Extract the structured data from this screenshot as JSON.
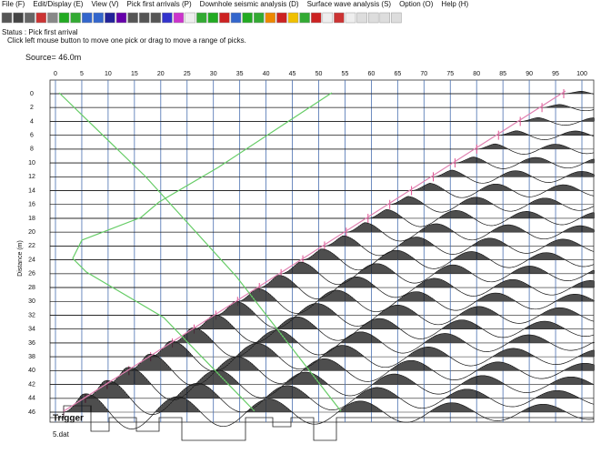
{
  "menu": [
    "File (F)",
    "Edit/Display (E)",
    "View (V)",
    "Pick first arrivals (P)",
    "Downhole seismic analysis (D)",
    "Surface wave analysis (S)",
    "Option (O)",
    "Help (H)"
  ],
  "status": {
    "line1": "Status : Pick first arrival",
    "line2": "Click left mouse button to move one pick or drag to move a range of picks."
  },
  "plot": {
    "source": "Source= 46.0m",
    "y_label": "Distance (m)",
    "xticks": [
      0,
      5,
      10,
      15,
      20,
      25,
      30,
      35,
      40,
      45,
      50,
      55,
      60,
      65,
      70,
      75,
      80,
      85,
      90,
      95,
      100
    ],
    "yticks": [
      0,
      2,
      4,
      6,
      8,
      10,
      12,
      14,
      16,
      18,
      20,
      22,
      24,
      26,
      28,
      30,
      32,
      34,
      36,
      38,
      40,
      42,
      44,
      46
    ],
    "trigger": "Trigger",
    "file": "5.dat"
  }
}
